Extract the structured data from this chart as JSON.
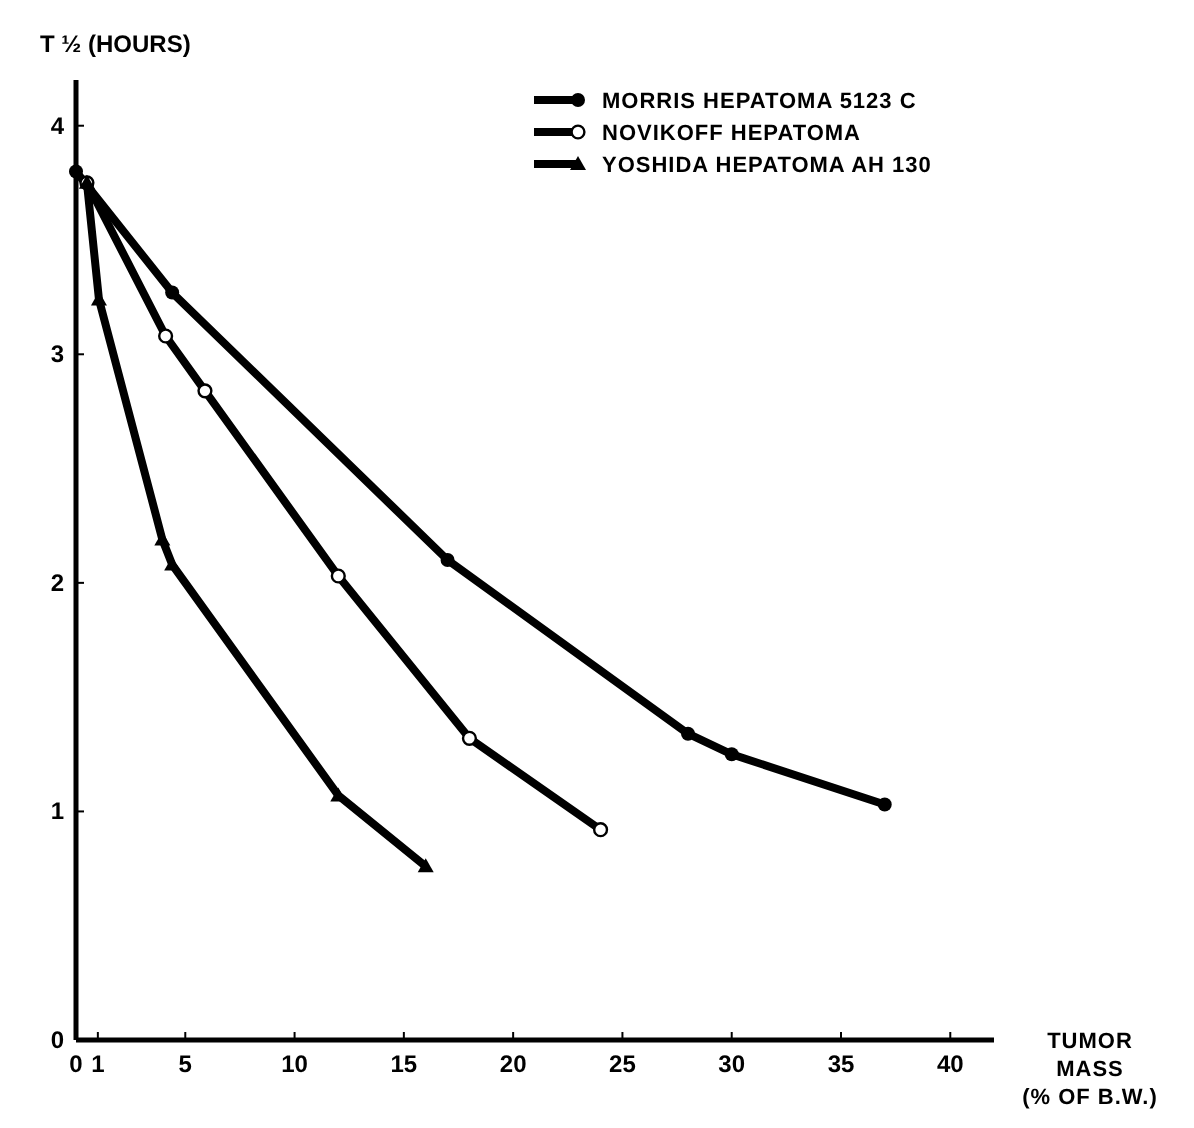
{
  "chart_data": {
    "type": "line",
    "ylabel": "T ½ (HOURS)",
    "xlabel": "TUMOR\nMASS\n(% OF B.W.)",
    "xlim": [
      0,
      42
    ],
    "ylim": [
      0,
      4.2
    ],
    "xticks": [
      0,
      1,
      5,
      10,
      15,
      20,
      25,
      30,
      35,
      40
    ],
    "yticks": [
      0,
      1,
      2,
      3,
      4
    ],
    "grid": false,
    "legend": "top right",
    "line_style": "solid",
    "series": [
      {
        "name": "MORRIS HEPATOMA 5123 C",
        "color": "#000000",
        "marker": "circle",
        "x": [
          0,
          4.4,
          17,
          28,
          30,
          37
        ],
        "values": [
          3.8,
          3.27,
          2.1,
          1.34,
          1.25,
          1.03
        ]
      },
      {
        "name": "NOVIKOFF HEPATOMA",
        "color": "#000000",
        "marker": "open-circle",
        "x": [
          0.5,
          4.1,
          5.9,
          12,
          18,
          24
        ],
        "values": [
          3.75,
          3.08,
          2.84,
          2.03,
          1.32,
          0.92
        ]
      },
      {
        "name": "YOSHIDA HEPATOMA AH 130",
        "color": "#000000",
        "marker": "triangle",
        "x": [
          0.5,
          1.05,
          3.95,
          4.4,
          12,
          16
        ],
        "values": [
          3.75,
          3.24,
          2.19,
          2.08,
          1.07,
          0.76
        ]
      }
    ]
  }
}
